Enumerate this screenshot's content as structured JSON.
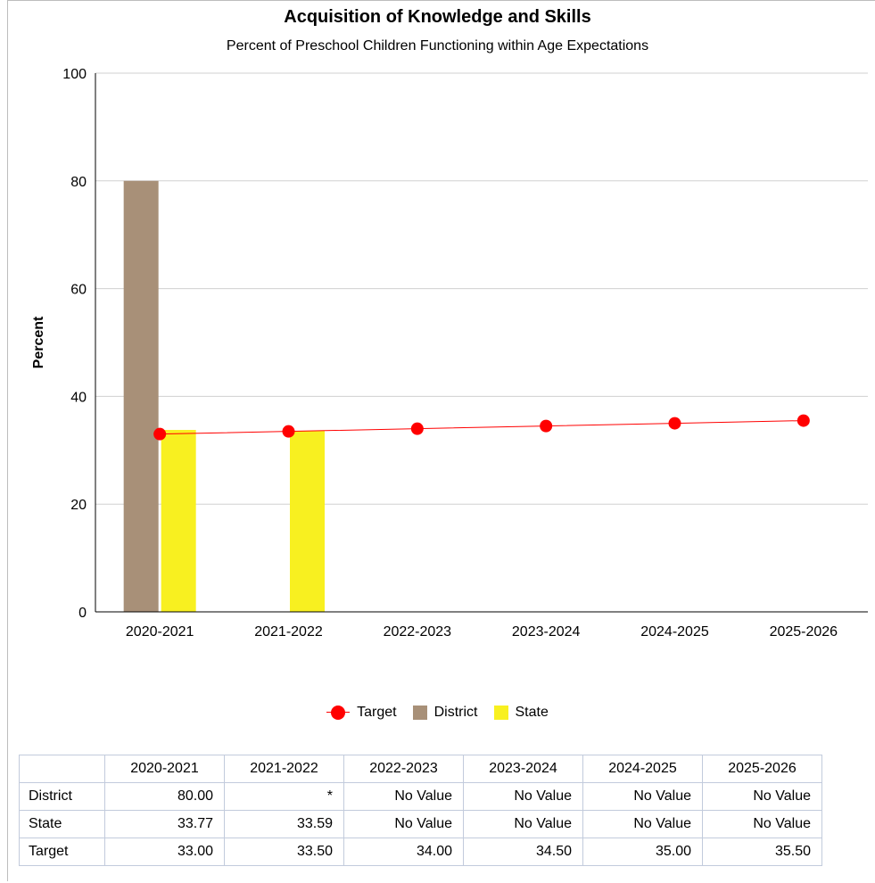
{
  "chart_data": {
    "type": "bar",
    "title": "Acquisition of Knowledge and Skills",
    "subtitle": "Percent of Preschool Children Functioning within Age Expectations",
    "xlabel": "",
    "ylabel": "Percent",
    "ylim": [
      0,
      100
    ],
    "yticks": [
      0,
      20,
      40,
      60,
      80,
      100
    ],
    "grid": true,
    "legend_position": "bottom",
    "categories": [
      "2020-2021",
      "2021-2022",
      "2022-2023",
      "2023-2024",
      "2024-2025",
      "2025-2026"
    ],
    "series": [
      {
        "name": "District",
        "kind": "bar",
        "color": "#a89078",
        "values": [
          80.0,
          null,
          null,
          null,
          null,
          null
        ]
      },
      {
        "name": "State",
        "kind": "bar",
        "color": "#f8f020",
        "values": [
          33.77,
          33.59,
          null,
          null,
          null,
          null
        ]
      },
      {
        "name": "Target",
        "kind": "line",
        "color": "#ff0000",
        "values": [
          33.0,
          33.5,
          34.0,
          34.5,
          35.0,
          35.5
        ]
      }
    ]
  },
  "legend": [
    {
      "label": "Target",
      "color": "#ff0000"
    },
    {
      "label": "District",
      "color": "#a89078"
    },
    {
      "label": "State",
      "color": "#f8f020"
    }
  ],
  "table": {
    "headers": [
      "2020-2021",
      "2021-2022",
      "2022-2023",
      "2023-2024",
      "2024-2025",
      "2025-2026"
    ],
    "rows": [
      {
        "label": "District",
        "cells": [
          "80.00",
          "*",
          "No Value",
          "No Value",
          "No Value",
          "No Value"
        ]
      },
      {
        "label": "State",
        "cells": [
          "33.77",
          "33.59",
          "No Value",
          "No Value",
          "No Value",
          "No Value"
        ]
      },
      {
        "label": "Target",
        "cells": [
          "33.00",
          "33.50",
          "34.00",
          "34.50",
          "35.00",
          "35.50"
        ]
      }
    ]
  }
}
